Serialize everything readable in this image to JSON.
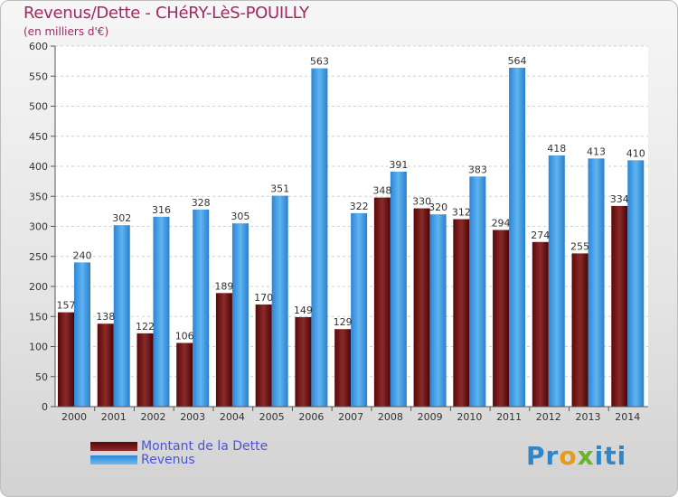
{
  "header": {
    "title": "Revenus/Dette - CHéRY-LèS-POUILLY",
    "subtitle": "(en milliers d'€)"
  },
  "chart_data": {
    "type": "bar",
    "title": "Revenus/Dette - CHéRY-LèS-POUILLY",
    "ylabel": "(en milliers d'€)",
    "xlabel": "",
    "categories": [
      "2000",
      "2001",
      "2002",
      "2003",
      "2004",
      "2005",
      "2006",
      "2007",
      "2008",
      "2009",
      "2010",
      "2011",
      "2012",
      "2013",
      "2014"
    ],
    "series": [
      {
        "name": "Montant de la Dette",
        "color": "#7a1a1a",
        "values": [
          157,
          138,
          122,
          106,
          189,
          170,
          149,
          129,
          348,
          330,
          312,
          294,
          274,
          255,
          334
        ]
      },
      {
        "name": "Revenus",
        "color": "#3d9de6",
        "values": [
          240,
          302,
          316,
          328,
          305,
          351,
          563,
          322,
          391,
          320,
          383,
          564,
          418,
          413,
          410
        ]
      }
    ],
    "ylim": [
      0,
      600
    ],
    "yticks": [
      0,
      50,
      100,
      150,
      200,
      250,
      300,
      350,
      400,
      450,
      500,
      550,
      600
    ],
    "grid": true,
    "legend": "bottom-left"
  },
  "logo": {
    "part1": "Pr",
    "part2": "o",
    "part3": "x",
    "part4": "iti"
  }
}
